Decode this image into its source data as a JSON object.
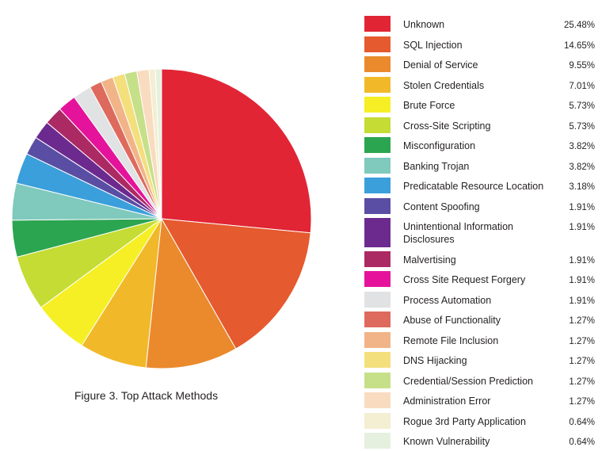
{
  "caption": "Figure 3.  Top Attack Methods",
  "chart_data": {
    "type": "pie",
    "title": "",
    "slices": [
      {
        "label": "Unknown",
        "value": 25.48,
        "display": "25.48%",
        "color": "#e12535"
      },
      {
        "label": "SQL Injection",
        "value": 14.65,
        "display": "14.65%",
        "color": "#e55a2e"
      },
      {
        "label": "Denial of Service",
        "value": 9.55,
        "display": "9.55%",
        "color": "#ea8a2d"
      },
      {
        "label": "Stolen Credentials",
        "value": 7.01,
        "display": "7.01%",
        "color": "#f1b829"
      },
      {
        "label": "Brute Force",
        "value": 5.73,
        "display": "5.73%",
        "color": "#f6ef25"
      },
      {
        "label": "Cross-Site Scripting",
        "value": 5.73,
        "display": "5.73%",
        "color": "#c4dc34"
      },
      {
        "label": "Misconfiguration",
        "value": 3.82,
        "display": "3.82%",
        "color": "#2ba550"
      },
      {
        "label": "Banking Trojan",
        "value": 3.82,
        "display": "3.82%",
        "color": "#7fc9bd"
      },
      {
        "label": "Predicatable Resource Location",
        "value": 3.18,
        "display": "3.18%",
        "color": "#3b9fdb"
      },
      {
        "label": "Content Spoofing",
        "value": 1.91,
        "display": "1.91%",
        "color": "#5a4ea4"
      },
      {
        "label": "Unintentional Information Disclosures",
        "value": 1.91,
        "display": "1.91%",
        "color": "#6c2a8f"
      },
      {
        "label": "Malvertising",
        "value": 1.91,
        "display": "1.91%",
        "color": "#ab2a63"
      },
      {
        "label": "Cross Site Request Forgery",
        "value": 1.91,
        "display": "1.91%",
        "color": "#e5139b"
      },
      {
        "label": "Process Automation",
        "value": 1.91,
        "display": "1.91%",
        "color": "#e1e2e3"
      },
      {
        "label": "Abuse of Functionality",
        "value": 1.27,
        "display": "1.27%",
        "color": "#de6a5e"
      },
      {
        "label": "Remote File Inclusion",
        "value": 1.27,
        "display": "1.27%",
        "color": "#f1b488"
      },
      {
        "label": "DNS Hijacking",
        "value": 1.27,
        "display": "1.27%",
        "color": "#f4df7d"
      },
      {
        "label": "Credential/Session Prediction",
        "value": 1.27,
        "display": "1.27%",
        "color": "#c6e08a"
      },
      {
        "label": "Administration Error",
        "value": 1.27,
        "display": "1.27%",
        "color": "#f9dbc0"
      },
      {
        "label": "Rogue 3rd Party Application",
        "value": 0.64,
        "display": "0.64%",
        "color": "#f4eed2"
      },
      {
        "label": "Known Vulnerability",
        "value": 0.64,
        "display": "0.64%",
        "color": "#e5f1de"
      }
    ],
    "pie_colors_note_free": true,
    "legend": "right"
  }
}
